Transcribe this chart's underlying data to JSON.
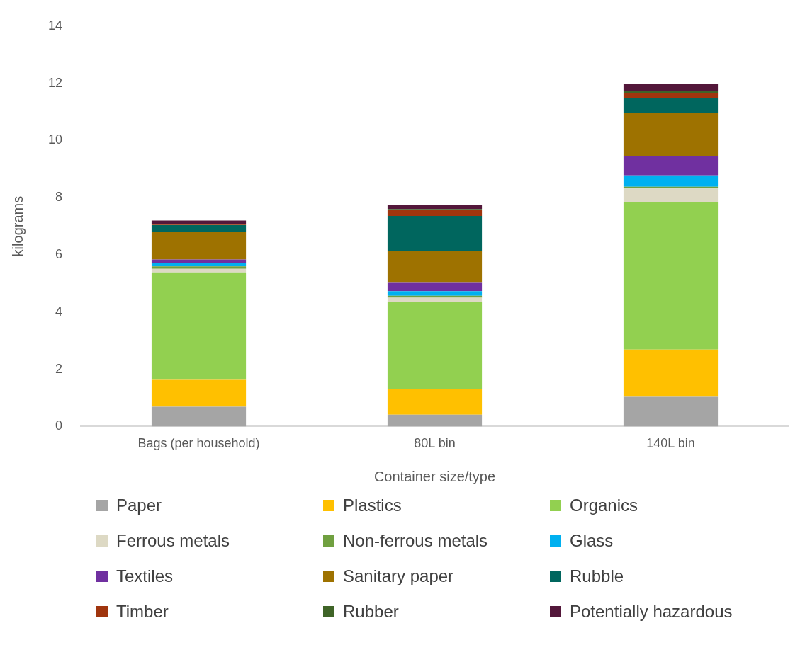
{
  "chart_data": {
    "type": "bar",
    "stacked": true,
    "xlabel": "Container size/type",
    "ylabel": "kilograms",
    "categories": [
      "Bags (per household)",
      "80L bin",
      "140L bin"
    ],
    "ylim": [
      0,
      14
    ],
    "yticks": [
      0,
      2,
      4,
      6,
      8,
      10,
      12,
      14
    ],
    "grid": false,
    "legend": "bottom",
    "series": [
      {
        "name": "Paper",
        "color": "#a5a5a5",
        "values": [
          0.69,
          0.41,
          1.04
        ]
      },
      {
        "name": "Plastics",
        "color": "#ffc000",
        "values": [
          0.94,
          0.89,
          1.65
        ]
      },
      {
        "name": "Organics",
        "color": "#92d050",
        "values": [
          3.76,
          3.04,
          5.15
        ]
      },
      {
        "name": "Ferrous metals",
        "color": "#ddd9c4",
        "values": [
          0.12,
          0.16,
          0.48
        ]
      },
      {
        "name": "Non-ferrous metals",
        "color": "#70a040",
        "values": [
          0.09,
          0.07,
          0.06
        ]
      },
      {
        "name": "Glass",
        "color": "#00b0f0",
        "values": [
          0.1,
          0.16,
          0.4
        ]
      },
      {
        "name": "Textiles",
        "color": "#7030a0",
        "values": [
          0.14,
          0.29,
          0.66
        ]
      },
      {
        "name": "Sanitary paper",
        "color": "#9e7200",
        "values": [
          0.96,
          1.13,
          1.52
        ]
      },
      {
        "name": "Rubble",
        "color": "#00665e",
        "values": [
          0.24,
          1.21,
          0.52
        ]
      },
      {
        "name": "Timber",
        "color": "#a0350e",
        "values": [
          0.02,
          0.2,
          0.17
        ]
      },
      {
        "name": "Rubber",
        "color": "#3f6428",
        "values": [
          0.01,
          0.04,
          0.07
        ]
      },
      {
        "name": "Potentially hazardous",
        "color": "#53173a",
        "values": [
          0.13,
          0.15,
          0.25
        ]
      }
    ]
  }
}
